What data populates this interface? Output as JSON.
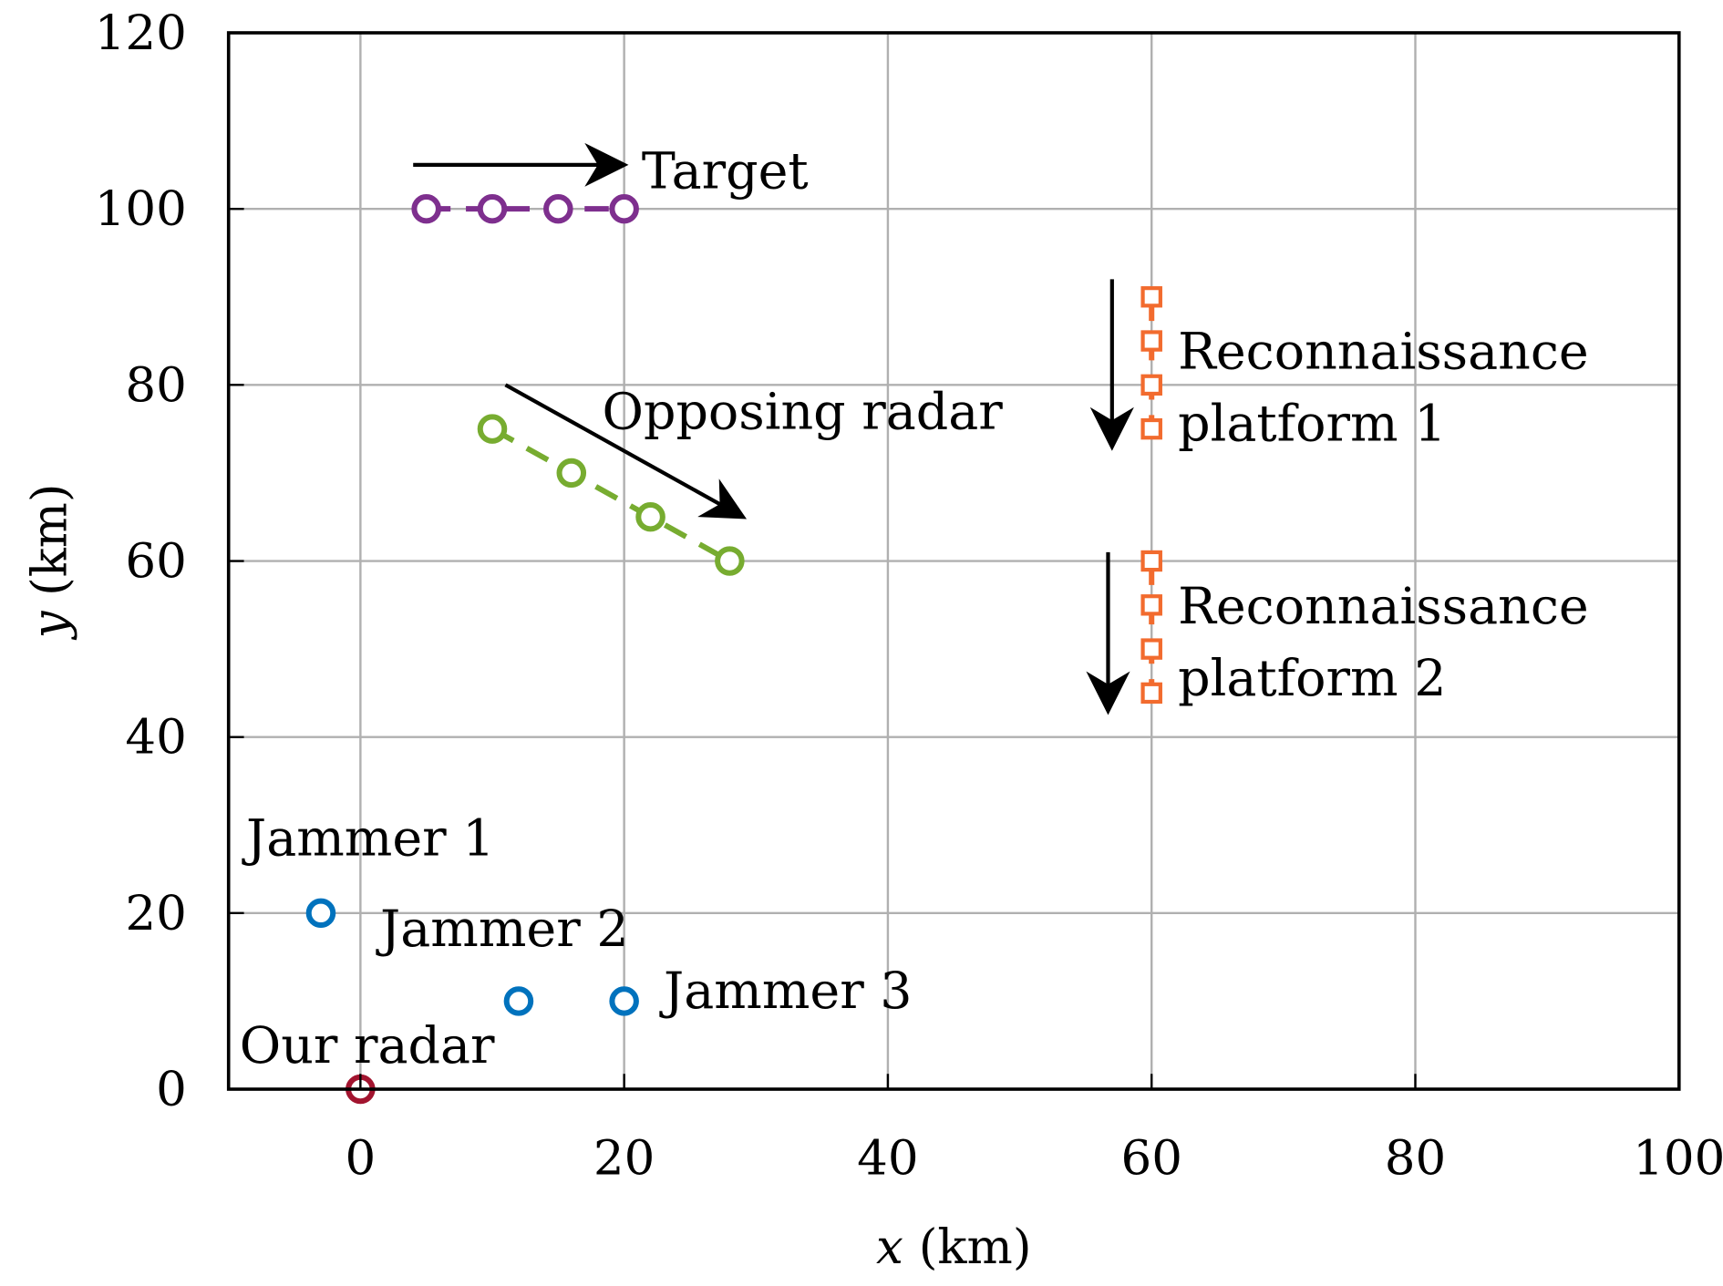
{
  "chart_data": {
    "type": "scatter",
    "xlabel_var": "x",
    "xlabel_unit": "(km)",
    "ylabel_var": "y",
    "ylabel_unit": "(km)",
    "xlim": [
      -10,
      100
    ],
    "ylim": [
      0,
      120
    ],
    "xticks": [
      0,
      20,
      40,
      60,
      80,
      100
    ],
    "yticks": [
      0,
      20,
      40,
      60,
      80,
      100,
      120
    ],
    "grid": true,
    "series": [
      {
        "label": "Target",
        "color": "#7E2F8E",
        "marker": "circle",
        "line": "dashed",
        "x": [
          5,
          10,
          15,
          20
        ],
        "y": [
          100,
          100,
          100,
          100
        ]
      },
      {
        "label": "Opposing radar",
        "color": "#77AC30",
        "marker": "circle",
        "line": "dashed",
        "x": [
          10,
          16,
          22,
          28
        ],
        "y": [
          75,
          70,
          65,
          60
        ]
      },
      {
        "label": "Reconnaissance platform 1",
        "label_lines": [
          "Reconnaissance",
          "platform 1"
        ],
        "color": "#F26B2E",
        "marker": "square",
        "line": "dashed",
        "x": [
          60,
          60,
          60,
          60
        ],
        "y": [
          90,
          85,
          80,
          75
        ]
      },
      {
        "label": "Reconnaissance platform 2",
        "label_lines": [
          "Reconnaissance",
          "platform 2"
        ],
        "color": "#F26B2E",
        "marker": "square",
        "line": "dashed",
        "x": [
          60,
          60,
          60,
          60
        ],
        "y": [
          60,
          55,
          50,
          45
        ]
      },
      {
        "label": "Jammer",
        "color": "#0072BD",
        "marker": "circle",
        "line": "none",
        "x": [
          -3,
          12,
          20
        ],
        "y": [
          20,
          10,
          10
        ],
        "point_labels": [
          "Jammer 1",
          "Jammer 2",
          "Jammer 3"
        ]
      },
      {
        "label": "Our radar",
        "color": "#A2142F",
        "marker": "circle",
        "line": "none",
        "x": [
          0
        ],
        "y": [
          0
        ]
      }
    ],
    "arrows": [
      {
        "from": [
          4,
          105
        ],
        "to": [
          20,
          105
        ]
      },
      {
        "from": [
          11,
          80
        ],
        "to": [
          29,
          65
        ]
      },
      {
        "from": [
          57,
          92
        ],
        "to": [
          57,
          73
        ]
      },
      {
        "from": [
          56.7,
          61
        ],
        "to": [
          56.7,
          43
        ]
      }
    ]
  }
}
